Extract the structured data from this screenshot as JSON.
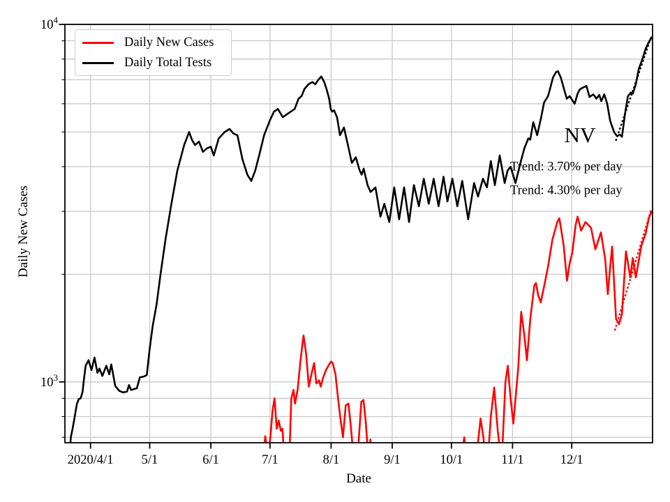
{
  "chart_data": {
    "type": "line",
    "title": "",
    "xlabel": "Date",
    "ylabel": "Daily New Cases",
    "x_unit": "days since 2020/4/1",
    "x_domain_days": [
      -13,
      285
    ],
    "x_ticks": [
      {
        "day": 0,
        "label": "2020/4/1"
      },
      {
        "day": 30,
        "label": "5/1"
      },
      {
        "day": 61,
        "label": "6/1"
      },
      {
        "day": 91,
        "label": "7/1"
      },
      {
        "day": 122,
        "label": "8/1"
      },
      {
        "day": 153,
        "label": "9/1"
      },
      {
        "day": 183,
        "label": "10/1"
      },
      {
        "day": 214,
        "label": "11/1"
      },
      {
        "day": 244,
        "label": "12/1"
      }
    ],
    "y_axis": {
      "scale": "log",
      "range": [
        676,
        10000
      ],
      "major_ticks": [
        {
          "value": 1000,
          "base": "10",
          "exponent": "3"
        },
        {
          "value": 10000,
          "base": "10",
          "exponent": "4"
        }
      ],
      "minor_tick_values": [
        700,
        800,
        900,
        2000,
        3000,
        4000,
        5000,
        6000,
        7000,
        8000,
        9000
      ]
    },
    "grid": {
      "on": true,
      "color": "#c9c9c9"
    },
    "legend_position": "upper left",
    "annotations": {
      "state": "NV",
      "trend_tests": "Trend: 3.70% per day",
      "trend_cases": "Trend: 4.30% per day"
    },
    "series": [
      {
        "name": "Daily New Cases",
        "color": "#ff0000",
        "line_style": "solid",
        "points": [
          [
            86.8,
            560
          ],
          [
            88.6,
            705
          ],
          [
            90,
            620
          ],
          [
            91.2,
            700
          ],
          [
            92.3,
            830
          ],
          [
            93.3,
            900
          ],
          [
            94.4,
            740
          ],
          [
            95.4,
            780
          ],
          [
            96.5,
            730
          ],
          [
            97.3,
            740
          ],
          [
            98,
            640
          ],
          [
            99,
            570
          ],
          [
            100,
            570
          ],
          [
            100.9,
            630
          ],
          [
            101.8,
            900
          ],
          [
            102.9,
            950
          ],
          [
            103.7,
            870
          ],
          [
            105,
            950
          ],
          [
            106.5,
            1150
          ],
          [
            108,
            1350
          ],
          [
            109.3,
            1200
          ],
          [
            110.7,
            970
          ],
          [
            112,
            1050
          ],
          [
            113.4,
            1130
          ],
          [
            114.5,
            990
          ],
          [
            115.9,
            1010
          ],
          [
            116.7,
            970
          ],
          [
            118,
            1030
          ],
          [
            119.4,
            1080
          ],
          [
            121,
            1120
          ],
          [
            122,
            1140
          ],
          [
            122.8,
            1130
          ],
          [
            124.2,
            1050
          ],
          [
            125.3,
            920
          ],
          [
            126.6,
            800
          ],
          [
            128,
            700
          ],
          [
            129.4,
            860
          ],
          [
            130.8,
            870
          ],
          [
            132,
            750
          ],
          [
            133,
            650
          ],
          [
            135,
            570
          ],
          [
            137.3,
            880
          ],
          [
            138.4,
            890
          ],
          [
            139.5,
            780
          ],
          [
            140.8,
            620
          ],
          [
            141.9,
            690
          ],
          [
            143,
            570
          ],
          [
            146,
            500
          ],
          [
            155,
            450
          ],
          [
            165,
            460
          ],
          [
            175,
            490
          ],
          [
            183,
            555
          ],
          [
            188,
            610
          ],
          [
            189.5,
            700
          ],
          [
            191,
            585
          ],
          [
            194,
            555
          ],
          [
            196,
            640
          ],
          [
            197.8,
            790
          ],
          [
            199.2,
            700
          ],
          [
            200.5,
            590
          ],
          [
            201.8,
            640
          ],
          [
            203,
            800
          ],
          [
            204.7,
            965
          ],
          [
            206.5,
            730
          ],
          [
            208,
            620
          ],
          [
            208.8,
            645
          ],
          [
            210.4,
            1000
          ],
          [
            211.6,
            1110
          ],
          [
            213,
            900
          ],
          [
            214.4,
            765
          ],
          [
            216.9,
            1100
          ],
          [
            218.4,
            1570
          ],
          [
            220,
            1350
          ],
          [
            221.3,
            1150
          ],
          [
            223,
            1500
          ],
          [
            225,
            1860
          ],
          [
            225.9,
            1890
          ],
          [
            227,
            1750
          ],
          [
            228.3,
            1670
          ],
          [
            230,
            1850
          ],
          [
            232,
            2100
          ],
          [
            234.2,
            2500
          ],
          [
            236.7,
            2800
          ],
          [
            237.7,
            2870
          ],
          [
            239,
            2600
          ],
          [
            239.9,
            2410
          ],
          [
            241.6,
            1920
          ],
          [
            243,
            2150
          ],
          [
            244.3,
            2300
          ],
          [
            246,
            2750
          ],
          [
            247,
            2900
          ],
          [
            248.8,
            2650
          ],
          [
            251,
            2800
          ],
          [
            253.8,
            2700
          ],
          [
            256,
            2350
          ],
          [
            258.8,
            2620
          ],
          [
            261,
            2200
          ],
          [
            262.3,
            1760
          ],
          [
            263.5,
            2100
          ],
          [
            264.5,
            2390
          ],
          [
            266.5,
            1500
          ],
          [
            268,
            1450
          ],
          [
            269.5,
            1550
          ],
          [
            271.5,
            2320
          ],
          [
            273.7,
            1960
          ],
          [
            275,
            2220
          ],
          [
            276.5,
            1960
          ],
          [
            279.3,
            2400
          ],
          [
            281.5,
            2600
          ],
          [
            283.2,
            2880
          ],
          [
            284.5,
            3000
          ]
        ]
      },
      {
        "name": "Daily Total Tests",
        "color": "#000000",
        "line_style": "solid",
        "points": [
          [
            -11.3,
            540
          ],
          [
            -10.5,
            640
          ],
          [
            -10,
            700
          ],
          [
            -9,
            745
          ],
          [
            -8,
            800
          ],
          [
            -7,
            865
          ],
          [
            -6,
            895
          ],
          [
            -5,
            900
          ],
          [
            -4,
            940
          ],
          [
            -3.5,
            1000
          ],
          [
            -2.5,
            1110
          ],
          [
            -1,
            1150
          ],
          [
            0.5,
            1080
          ],
          [
            2,
            1170
          ],
          [
            3.5,
            1060
          ],
          [
            4.5,
            1090
          ],
          [
            6,
            1040
          ],
          [
            8,
            1110
          ],
          [
            9.5,
            1050
          ],
          [
            10.5,
            1120
          ],
          [
            12.5,
            975
          ],
          [
            14.5,
            945
          ],
          [
            16.5,
            935
          ],
          [
            18.5,
            940
          ],
          [
            19.5,
            980
          ],
          [
            20.5,
            950
          ],
          [
            22,
            955
          ],
          [
            23.5,
            960
          ],
          [
            25,
            1030
          ],
          [
            27,
            1035
          ],
          [
            28.5,
            1045
          ],
          [
            30,
            1240
          ],
          [
            31.5,
            1430
          ],
          [
            33.5,
            1650
          ],
          [
            35.5,
            2000
          ],
          [
            38,
            2500
          ],
          [
            41,
            3150
          ],
          [
            44,
            3900
          ],
          [
            47.5,
            4600
          ],
          [
            50,
            5000
          ],
          [
            51.5,
            4750
          ],
          [
            53,
            4600
          ],
          [
            55,
            4700
          ],
          [
            57,
            4400
          ],
          [
            59,
            4500
          ],
          [
            61,
            4550
          ],
          [
            62.5,
            4300
          ],
          [
            65,
            4800
          ],
          [
            68,
            5000
          ],
          [
            70.5,
            5100
          ],
          [
            72.5,
            4950
          ],
          [
            74.5,
            4900
          ],
          [
            77,
            4200
          ],
          [
            79.5,
            3800
          ],
          [
            81.5,
            3650
          ],
          [
            83.5,
            3900
          ],
          [
            85.5,
            4300
          ],
          [
            88,
            4900
          ],
          [
            91,
            5400
          ],
          [
            93,
            5700
          ],
          [
            95,
            5800
          ],
          [
            97.5,
            5500
          ],
          [
            99.5,
            5600
          ],
          [
            101.5,
            5700
          ],
          [
            103.5,
            5800
          ],
          [
            105.5,
            6200
          ],
          [
            107,
            6300
          ],
          [
            108.5,
            6600
          ],
          [
            110.5,
            6800
          ],
          [
            112.5,
            6900
          ],
          [
            114,
            6800
          ],
          [
            115.5,
            7000
          ],
          [
            117,
            7150
          ],
          [
            118.5,
            6900
          ],
          [
            120,
            6500
          ],
          [
            121,
            6200
          ],
          [
            121.8,
            5800
          ],
          [
            122.5,
            5700
          ],
          [
            123.5,
            5750
          ],
          [
            125,
            5500
          ],
          [
            126.5,
            4900
          ],
          [
            128.5,
            5150
          ],
          [
            130.5,
            4600
          ],
          [
            132.5,
            4100
          ],
          [
            134.5,
            4250
          ],
          [
            136.5,
            3900
          ],
          [
            137.5,
            3800
          ],
          [
            138.5,
            3950
          ],
          [
            140.5,
            3550
          ],
          [
            142,
            3400
          ],
          [
            144.5,
            3500
          ],
          [
            147,
            2900
          ],
          [
            149,
            3150
          ],
          [
            151.5,
            2800
          ],
          [
            154,
            3500
          ],
          [
            156.5,
            2850
          ],
          [
            159,
            3500
          ],
          [
            161.5,
            2800
          ],
          [
            164,
            3550
          ],
          [
            166.5,
            3100
          ],
          [
            169,
            3700
          ],
          [
            171.5,
            3150
          ],
          [
            174,
            3700
          ],
          [
            176.5,
            3100
          ],
          [
            179,
            3750
          ],
          [
            181,
            3200
          ],
          [
            183.5,
            3700
          ],
          [
            186,
            3100
          ],
          [
            188.5,
            3650
          ],
          [
            191.5,
            2850
          ],
          [
            194.5,
            3600
          ],
          [
            196.5,
            3300
          ],
          [
            199,
            3700
          ],
          [
            201,
            3500
          ],
          [
            203,
            4150
          ],
          [
            205,
            3550
          ],
          [
            207.5,
            4300
          ],
          [
            210,
            3600
          ],
          [
            211.5,
            3900
          ],
          [
            213,
            4000
          ],
          [
            215.5,
            3600
          ],
          [
            218,
            4100
          ],
          [
            220,
            4500
          ],
          [
            222,
            4800
          ],
          [
            223,
            4760
          ],
          [
            224.5,
            5330
          ],
          [
            226.5,
            4900
          ],
          [
            228.5,
            5500
          ],
          [
            230,
            6050
          ],
          [
            232,
            6300
          ],
          [
            233,
            6600
          ],
          [
            234.5,
            7100
          ],
          [
            236,
            7350
          ],
          [
            237,
            7400
          ],
          [
            238.5,
            7100
          ],
          [
            240,
            6620
          ],
          [
            241.5,
            6200
          ],
          [
            243,
            6300
          ],
          [
            244,
            6170
          ],
          [
            245.5,
            6000
          ],
          [
            247,
            6400
          ],
          [
            248,
            6570
          ],
          [
            249.5,
            6650
          ],
          [
            251.5,
            6730
          ],
          [
            253,
            6270
          ],
          [
            255,
            6370
          ],
          [
            256.5,
            6200
          ],
          [
            258,
            6350
          ],
          [
            259,
            6100
          ],
          [
            260.5,
            6370
          ],
          [
            262,
            6000
          ],
          [
            263.5,
            5370
          ],
          [
            265.5,
            5000
          ],
          [
            267,
            4870
          ],
          [
            268.5,
            4920
          ],
          [
            269.5,
            4850
          ],
          [
            271,
            5600
          ],
          [
            272.5,
            6300
          ],
          [
            274,
            6450
          ],
          [
            275,
            6400
          ],
          [
            276.5,
            6800
          ],
          [
            278,
            7500
          ],
          [
            279.5,
            7900
          ],
          [
            281.5,
            8550
          ],
          [
            283,
            8900
          ],
          [
            284.5,
            9200
          ]
        ]
      },
      {
        "name": "Cases trend fit (4.30% per day)",
        "color": "#ff0000",
        "line_style": "dotted",
        "points": [
          [
            266,
            1400
          ],
          [
            284.5,
            3060
          ]
        ]
      },
      {
        "name": "Tests trend fit (3.70% per day)",
        "color": "#000000",
        "line_style": "dotted",
        "points": [
          [
            266.5,
            4750
          ],
          [
            284.5,
            9300
          ]
        ]
      }
    ]
  }
}
